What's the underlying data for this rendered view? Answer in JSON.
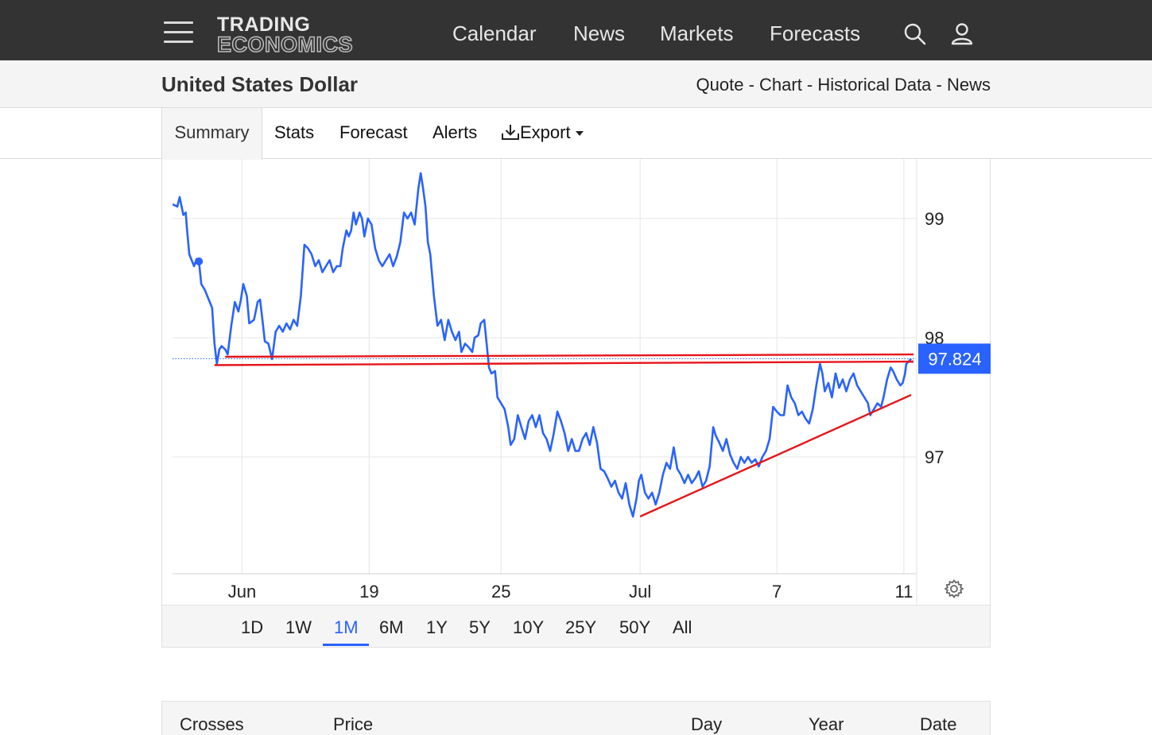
{
  "nav": {
    "logo_line1": "TRADING",
    "logo_line2": "ECONOMICS",
    "items": [
      "Calendar",
      "News",
      "Markets",
      "Forecasts"
    ],
    "search_icon": "search-icon",
    "user_icon": "user-icon"
  },
  "header": {
    "title": "United States Dollar",
    "links": [
      "Quote",
      "Chart",
      "Historical Data",
      "News"
    ],
    "separator": " - "
  },
  "tabs": {
    "items": [
      "Summary",
      "Stats",
      "Forecast",
      "Alerts",
      "Export"
    ],
    "active": "Summary",
    "export_icon": "download-icon"
  },
  "ranges": {
    "items": [
      "1D",
      "1W",
      "1M",
      "6M",
      "1Y",
      "5Y",
      "10Y",
      "25Y",
      "50Y",
      "All"
    ],
    "active": "1M"
  },
  "table": {
    "headers": [
      "Crosses",
      "Price",
      "Day",
      "Year",
      "Date"
    ]
  },
  "chart_data": {
    "type": "line",
    "title": "",
    "xlabel": "",
    "ylabel": "",
    "ylim": [
      96.02,
      99.5
    ],
    "yticks": [
      97,
      98,
      99
    ],
    "xticks": [
      {
        "label": "Jun",
        "t": 2.9
      },
      {
        "label": "19",
        "t": 8.2
      },
      {
        "label": "25",
        "t": 13.7
      },
      {
        "label": "Jul",
        "t": 19.5
      },
      {
        "label": "7",
        "t": 25.2
      },
      {
        "label": "11",
        "t": 30.5
      }
    ],
    "xlim": [
      0,
      31.0
    ],
    "current_value": "97.824",
    "grid": true,
    "line_color": "#2962ff",
    "annotation_color": "#e5151a",
    "series": [
      {
        "values": [
          [
            0.0,
            99.12
          ],
          [
            0.2,
            99.1
          ],
          [
            0.3,
            99.18
          ],
          [
            0.45,
            99.03
          ],
          [
            0.55,
            99.05
          ],
          [
            0.6,
            98.92
          ],
          [
            0.7,
            98.7
          ],
          [
            0.8,
            98.65
          ],
          [
            0.9,
            98.6
          ],
          [
            1.0,
            98.66
          ],
          [
            1.1,
            98.64
          ],
          [
            1.2,
            98.45
          ],
          [
            1.35,
            98.4
          ],
          [
            1.45,
            98.35
          ],
          [
            1.55,
            98.3
          ],
          [
            1.65,
            98.25
          ],
          [
            1.75,
            97.95
          ],
          [
            1.85,
            97.78
          ],
          [
            1.95,
            97.9
          ],
          [
            2.05,
            97.93
          ],
          [
            2.2,
            97.9
          ],
          [
            2.3,
            97.86
          ],
          [
            2.45,
            98.1
          ],
          [
            2.6,
            98.3
          ],
          [
            2.75,
            98.22
          ],
          [
            2.85,
            98.32
          ],
          [
            2.95,
            98.45
          ],
          [
            3.1,
            98.35
          ],
          [
            3.2,
            98.12
          ],
          [
            3.4,
            98.15
          ],
          [
            3.55,
            98.3
          ],
          [
            3.65,
            98.32
          ],
          [
            3.75,
            98.15
          ],
          [
            3.85,
            97.97
          ],
          [
            4.0,
            97.95
          ],
          [
            4.15,
            97.82
          ],
          [
            4.3,
            98.05
          ],
          [
            4.45,
            98.1
          ],
          [
            4.6,
            98.05
          ],
          [
            4.75,
            98.12
          ],
          [
            4.9,
            98.07
          ],
          [
            5.05,
            98.15
          ],
          [
            5.2,
            98.1
          ],
          [
            5.35,
            98.35
          ],
          [
            5.5,
            98.78
          ],
          [
            5.65,
            98.75
          ],
          [
            5.8,
            98.7
          ],
          [
            5.95,
            98.6
          ],
          [
            6.1,
            98.65
          ],
          [
            6.25,
            98.55
          ],
          [
            6.4,
            98.6
          ],
          [
            6.55,
            98.65
          ],
          [
            6.7,
            98.55
          ],
          [
            6.85,
            98.6
          ],
          [
            7.0,
            98.6
          ],
          [
            7.1,
            98.75
          ],
          [
            7.25,
            98.9
          ],
          [
            7.35,
            98.85
          ],
          [
            7.45,
            98.9
          ],
          [
            7.55,
            99.05
          ],
          [
            7.65,
            98.95
          ],
          [
            7.8,
            99.05
          ],
          [
            7.9,
            99.0
          ],
          [
            8.0,
            98.85
          ],
          [
            8.15,
            99.0
          ],
          [
            8.3,
            98.95
          ],
          [
            8.45,
            98.75
          ],
          [
            8.6,
            98.65
          ],
          [
            8.75,
            98.6
          ],
          [
            8.9,
            98.65
          ],
          [
            9.05,
            98.7
          ],
          [
            9.2,
            98.6
          ],
          [
            9.35,
            98.68
          ],
          [
            9.5,
            98.8
          ],
          [
            9.65,
            99.05
          ],
          [
            9.8,
            99.0
          ],
          [
            9.95,
            99.05
          ],
          [
            10.1,
            98.95
          ],
          [
            10.25,
            99.25
          ],
          [
            10.35,
            99.38
          ],
          [
            10.45,
            99.25
          ],
          [
            10.55,
            99.1
          ],
          [
            10.65,
            98.8
          ],
          [
            10.75,
            98.7
          ],
          [
            10.9,
            98.35
          ],
          [
            11.05,
            98.1
          ],
          [
            11.2,
            98.15
          ],
          [
            11.35,
            97.98
          ],
          [
            11.5,
            98.15
          ],
          [
            11.65,
            98.05
          ],
          [
            11.8,
            97.98
          ],
          [
            11.95,
            98.05
          ],
          [
            12.05,
            97.88
          ],
          [
            12.2,
            97.95
          ],
          [
            12.35,
            97.92
          ],
          [
            12.5,
            97.88
          ],
          [
            12.6,
            98.0
          ],
          [
            12.75,
            98.02
          ],
          [
            12.85,
            98.12
          ],
          [
            13.0,
            98.15
          ],
          [
            13.1,
            97.95
          ],
          [
            13.2,
            97.75
          ],
          [
            13.3,
            97.7
          ],
          [
            13.45,
            97.72
          ],
          [
            13.55,
            97.5
          ],
          [
            13.7,
            97.45
          ],
          [
            13.85,
            97.4
          ],
          [
            14.0,
            97.25
          ],
          [
            14.1,
            97.1
          ],
          [
            14.25,
            97.15
          ],
          [
            14.4,
            97.35
          ],
          [
            14.55,
            97.25
          ],
          [
            14.7,
            97.15
          ],
          [
            14.85,
            97.3
          ],
          [
            15.0,
            97.35
          ],
          [
            15.15,
            97.25
          ],
          [
            15.3,
            97.35
          ],
          [
            15.45,
            97.2
          ],
          [
            15.6,
            97.15
          ],
          [
            15.75,
            97.05
          ],
          [
            15.9,
            97.2
          ],
          [
            16.05,
            97.38
          ],
          [
            16.2,
            97.3
          ],
          [
            16.35,
            97.2
          ],
          [
            16.5,
            97.05
          ],
          [
            16.65,
            97.15
          ],
          [
            16.8,
            97.05
          ],
          [
            16.95,
            97.05
          ],
          [
            17.1,
            97.15
          ],
          [
            17.25,
            97.2
          ],
          [
            17.4,
            97.1
          ],
          [
            17.55,
            97.25
          ],
          [
            17.7,
            97.12
          ],
          [
            17.85,
            96.9
          ],
          [
            18.0,
            96.88
          ],
          [
            18.15,
            96.82
          ],
          [
            18.3,
            96.75
          ],
          [
            18.45,
            96.8
          ],
          [
            18.6,
            96.7
          ],
          [
            18.75,
            96.65
          ],
          [
            18.9,
            96.78
          ],
          [
            19.05,
            96.6
          ],
          [
            19.2,
            96.5
          ],
          [
            19.35,
            96.65
          ],
          [
            19.45,
            96.8
          ],
          [
            19.55,
            96.85
          ],
          [
            19.7,
            96.7
          ],
          [
            19.85,
            96.65
          ],
          [
            20.0,
            96.7
          ],
          [
            20.15,
            96.6
          ],
          [
            20.3,
            96.7
          ],
          [
            20.45,
            96.85
          ],
          [
            20.6,
            96.95
          ],
          [
            20.75,
            96.9
          ],
          [
            20.9,
            97.08
          ],
          [
            21.05,
            96.9
          ],
          [
            21.2,
            96.85
          ],
          [
            21.35,
            96.78
          ],
          [
            21.5,
            96.85
          ],
          [
            21.65,
            96.78
          ],
          [
            21.8,
            96.82
          ],
          [
            21.95,
            96.88
          ],
          [
            22.1,
            96.75
          ],
          [
            22.25,
            96.8
          ],
          [
            22.4,
            96.92
          ],
          [
            22.55,
            97.25
          ],
          [
            22.65,
            97.18
          ],
          [
            22.8,
            97.12
          ],
          [
            22.95,
            97.05
          ],
          [
            23.1,
            97.15
          ],
          [
            23.25,
            97.02
          ],
          [
            23.4,
            96.95
          ],
          [
            23.55,
            96.9
          ],
          [
            23.7,
            97.0
          ],
          [
            23.85,
            96.95
          ],
          [
            24.0,
            97.0
          ],
          [
            24.15,
            96.95
          ],
          [
            24.3,
            96.98
          ],
          [
            24.45,
            96.92
          ],
          [
            24.6,
            97.0
          ],
          [
            24.75,
            97.05
          ],
          [
            24.9,
            97.15
          ],
          [
            25.05,
            97.42
          ],
          [
            25.2,
            97.38
          ],
          [
            25.35,
            97.35
          ],
          [
            25.5,
            97.35
          ],
          [
            25.65,
            97.6
          ],
          [
            25.8,
            97.5
          ],
          [
            25.95,
            97.45
          ],
          [
            26.1,
            97.35
          ],
          [
            26.25,
            97.38
          ],
          [
            26.4,
            97.32
          ],
          [
            26.55,
            97.28
          ],
          [
            26.7,
            97.4
          ],
          [
            26.85,
            97.6
          ],
          [
            27.0,
            97.78
          ],
          [
            27.1,
            97.7
          ],
          [
            27.2,
            97.55
          ],
          [
            27.35,
            97.62
          ],
          [
            27.5,
            97.5
          ],
          [
            27.65,
            97.7
          ],
          [
            27.8,
            97.58
          ],
          [
            27.95,
            97.65
          ],
          [
            28.1,
            97.55
          ],
          [
            28.25,
            97.65
          ],
          [
            28.4,
            97.7
          ],
          [
            28.55,
            97.6
          ],
          [
            28.7,
            97.55
          ],
          [
            28.85,
            97.5
          ],
          [
            29.0,
            97.45
          ],
          [
            29.1,
            97.35
          ],
          [
            29.25,
            97.4
          ],
          [
            29.4,
            97.45
          ],
          [
            29.55,
            97.42
          ],
          [
            29.65,
            97.5
          ],
          [
            29.8,
            97.65
          ],
          [
            29.95,
            97.75
          ],
          [
            30.05,
            97.72
          ],
          [
            30.2,
            97.65
          ],
          [
            30.35,
            97.6
          ],
          [
            30.45,
            97.62
          ],
          [
            30.55,
            97.7
          ],
          [
            30.6,
            97.78
          ],
          [
            30.7,
            97.8
          ],
          [
            30.8,
            97.824
          ]
        ]
      }
    ],
    "annotations": [
      {
        "kind": "hline",
        "from": [
          2.2,
          97.84
        ],
        "to": [
          30.9,
          97.86
        ]
      },
      {
        "kind": "hline",
        "from": [
          1.75,
          97.77
        ],
        "to": [
          30.9,
          97.8
        ]
      },
      {
        "kind": "trend",
        "from": [
          19.5,
          96.5
        ],
        "to": [
          30.8,
          97.52
        ]
      }
    ]
  }
}
